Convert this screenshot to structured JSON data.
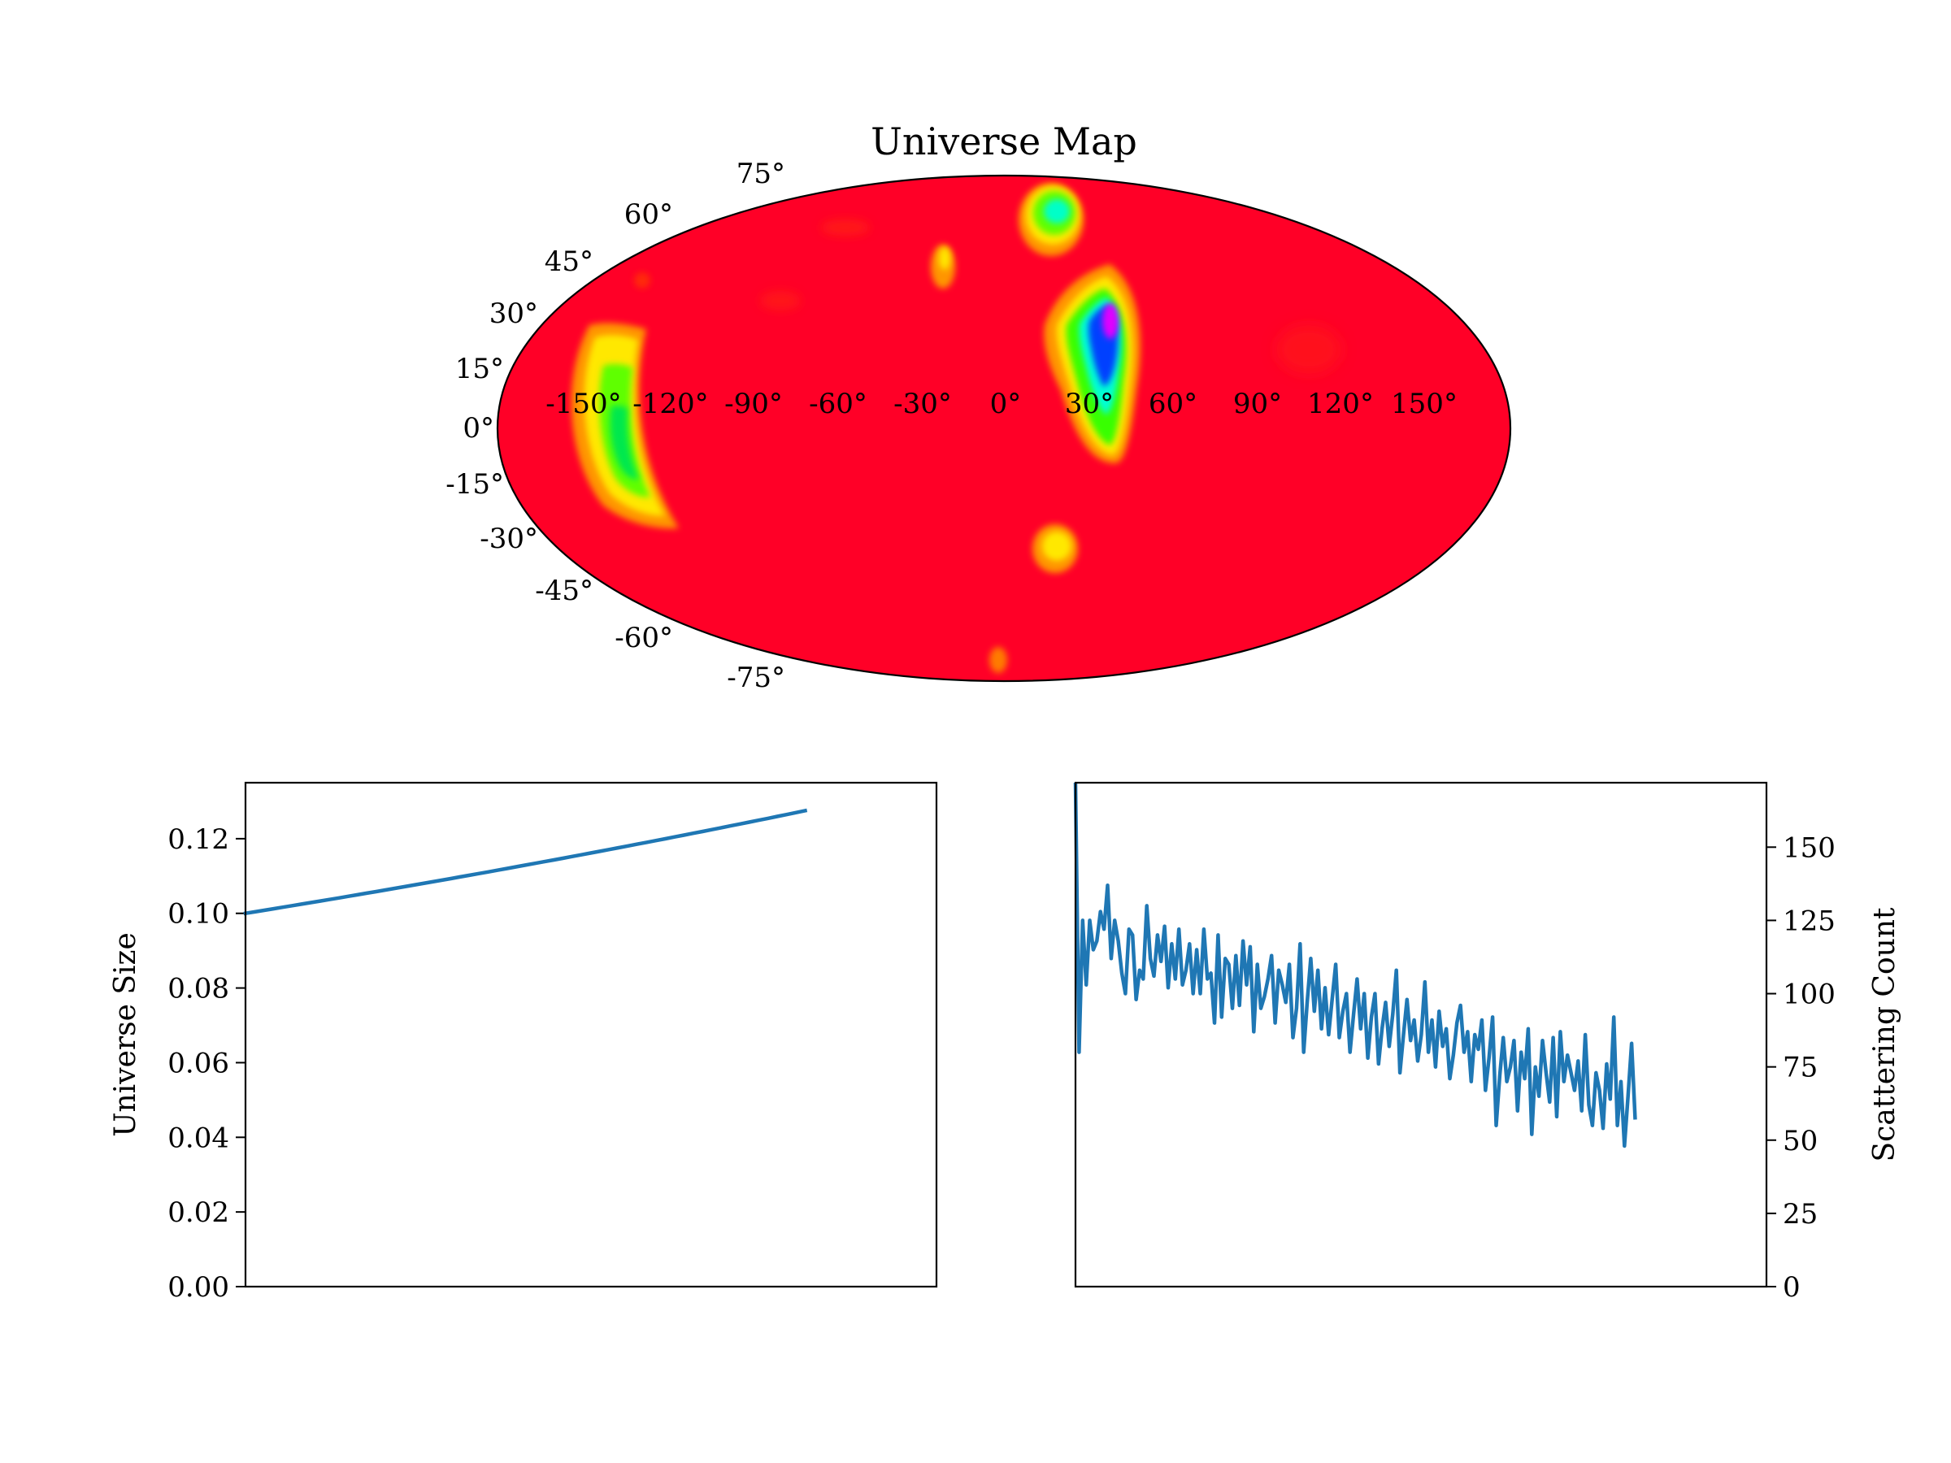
{
  "chart_data": [
    {
      "type": "heatmap",
      "projection": "mollweide",
      "title": "Universe Map",
      "longitude_ticks": [
        "-150°",
        "-120°",
        "-90°",
        "-60°",
        "-30°",
        "0°",
        "30°",
        "60°",
        "90°",
        "120°",
        "150°"
      ],
      "latitude_ticks": [
        "75°",
        "60°",
        "45°",
        "30°",
        "15°",
        "0°",
        "-15°",
        "-30°",
        "-45°",
        "-60°",
        "-75°"
      ],
      "colormap": "gist_rainbow (red = low, magenta = high)",
      "background_color": "#ff0027",
      "hotspots": [
        {
          "lon": 35,
          "lat": 20,
          "lon_span": 15,
          "lat_span": 40,
          "peak": "magenta/blue"
        },
        {
          "lon": -145,
          "lat": -5,
          "lon_span": 18,
          "lat_span": 40,
          "peak": "green"
        },
        {
          "lon": 15,
          "lat": 70,
          "lon_span": 12,
          "lat_span": 10,
          "peak": "cyan"
        },
        {
          "lon": -20,
          "lat": 50,
          "lon_span": 6,
          "lat_span": 8,
          "peak": "yellow"
        },
        {
          "lon": 15,
          "lat": -38,
          "lon_span": 8,
          "lat_span": 8,
          "peak": "yellow"
        },
        {
          "lon": -2,
          "lat": -82,
          "lon_span": 4,
          "lat_span": 4,
          "peak": "orange"
        }
      ]
    },
    {
      "type": "line",
      "ylabel": "Universe Size",
      "ylim": [
        0,
        0.135
      ],
      "yticks": [
        "0.00",
        "0.02",
        "0.04",
        "0.06",
        "0.08",
        "0.10",
        "0.12"
      ],
      "x_range": [
        0,
        1
      ],
      "series": [
        {
          "color": "#1f77b4",
          "x": [
            0,
            0.81
          ],
          "y_start": 0.1,
          "y_end": 0.1275,
          "growth": "slightly exponential"
        }
      ]
    },
    {
      "type": "line",
      "ylabel": "Scattering Count",
      "yaxis_side": "right",
      "ylim": [
        0,
        172
      ],
      "yticks": [
        "0",
        "25",
        "50",
        "75",
        "100",
        "125",
        "150"
      ],
      "series": [
        {
          "color": "#1f77b4",
          "values": [
            172,
            80,
            125,
            103,
            125,
            115,
            118,
            128,
            122,
            137,
            112,
            125,
            118,
            107,
            100,
            122,
            120,
            98,
            108,
            105,
            130,
            112,
            106,
            120,
            111,
            123,
            102,
            117,
            105,
            122,
            103,
            108,
            117,
            100,
            115,
            100,
            122,
            105,
            107,
            90,
            120,
            92,
            112,
            110,
            95,
            113,
            96,
            118,
            103,
            116,
            87,
            110,
            95,
            99,
            105,
            113,
            90,
            108,
            103,
            97,
            110,
            85,
            95,
            117,
            80,
            97,
            112,
            94,
            108,
            88,
            102,
            86,
            98,
            110,
            85,
            94,
            100,
            80,
            93,
            105,
            88,
            100,
            78,
            92,
            100,
            76,
            88,
            97,
            82,
            93,
            108,
            73,
            86,
            98,
            84,
            91,
            77,
            86,
            104,
            80,
            91,
            75,
            94,
            82,
            88,
            71,
            79,
            90,
            96,
            80,
            87,
            70,
            86,
            81,
            91,
            67,
            78,
            92,
            55,
            72,
            85,
            70,
            75,
            84,
            60,
            80,
            71,
            88,
            52,
            75,
            65,
            84,
            73,
            63,
            85,
            58,
            87,
            70,
            79,
            73,
            67,
            77,
            60,
            86,
            62,
            55,
            73,
            67,
            54,
            76,
            64,
            92,
            55,
            70,
            48,
            65,
            83,
            57
          ]
        }
      ]
    }
  ]
}
